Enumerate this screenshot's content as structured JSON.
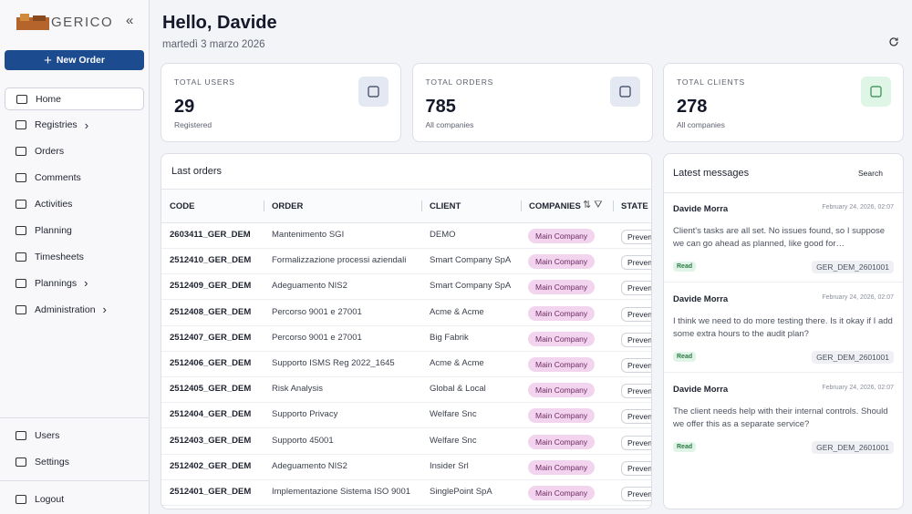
{
  "sidebar": {
    "logo": "GERICO",
    "new_order": "New Order",
    "nav": [
      "Home",
      "Registries",
      "Orders",
      "Comments",
      "Activities",
      "Planning",
      "Timesheets",
      "Plannings",
      "Administration"
    ],
    "bottom": [
      "Users",
      "Settings"
    ],
    "logout": "Logout"
  },
  "header": {
    "title": "Hello, Davide",
    "date": "martedì 3 marzo 2026"
  },
  "stats": [
    {
      "label": "TOTAL USERS",
      "value": "29",
      "note": "Registered"
    },
    {
      "label": "TOTAL ORDERS",
      "value": "785",
      "note": "All companies"
    },
    {
      "label": "TOTAL CLIENTS",
      "value": "278",
      "note": "All companies"
    }
  ],
  "orders": {
    "title": "Last orders",
    "columns": [
      "CODE",
      "ORDER",
      "CLIENT",
      "COMPANIES",
      "STATE"
    ],
    "rows": [
      [
        "2603411_GER_DEM",
        "Mantenimento SGI",
        "DEMO",
        "Main Company",
        "Preven"
      ],
      [
        "2512410_GER_DEM",
        "Formalizzazione processi aziendali",
        "Smart Company SpA",
        "Main Company",
        "Preven"
      ],
      [
        "2512409_GER_DEM",
        "Adeguamento NIS2",
        "Smart Company SpA",
        "Main Company",
        "Preven"
      ],
      [
        "2512408_GER_DEM",
        "Percorso 9001 e 27001",
        "Acme & Acme",
        "Main Company",
        "Preven"
      ],
      [
        "2512407_GER_DEM",
        "Percorso 9001 e 27001",
        "Big Fabrik",
        "Main Company",
        "Preven"
      ],
      [
        "2512406_GER_DEM",
        "Supporto ISMS Reg 2022_1645",
        "Acme & Acme",
        "Main Company",
        "Preven"
      ],
      [
        "2512405_GER_DEM",
        "Risk Analysis",
        "Global & Local",
        "Main Company",
        "Preven"
      ],
      [
        "2512404_GER_DEM",
        "Supporto Privacy",
        "Welfare Snc",
        "Main Company",
        "Preven"
      ],
      [
        "2512403_GER_DEM",
        "Supporto 45001",
        "Welfare Snc",
        "Main Company",
        "Preven"
      ],
      [
        "2512402_GER_DEM",
        "Adeguamento NIS2",
        "Insider Srl",
        "Main Company",
        "Preven"
      ],
      [
        "2512401_GER_DEM",
        "Implementazione Sistema ISO 9001",
        "SinglePoint SpA",
        "Main Company",
        "Preven"
      ]
    ]
  },
  "messages": {
    "title": "Latest messages",
    "search": "Search",
    "items": [
      {
        "author": "Davide Morra",
        "date": "February 24, 2026, 02:07",
        "text": "Client's tasks are all set. No issues found, so I suppose we can go ahead as planned, like good for…",
        "status": "Read",
        "ref": "GER_DEM_2601001"
      },
      {
        "author": "Davide Morra",
        "date": "February 24, 2026, 02:07",
        "text": "I think we need to do more testing there. Is it okay if I add some extra hours to the audit plan?",
        "status": "Read",
        "ref": "GER_DEM_2601001"
      },
      {
        "author": "Davide Morra",
        "date": "February 24, 2026, 02:07",
        "text": "The client needs help with their internal controls. Should we offer this as a separate service?",
        "status": "Read",
        "ref": "GER_DEM_2601001"
      }
    ]
  }
}
